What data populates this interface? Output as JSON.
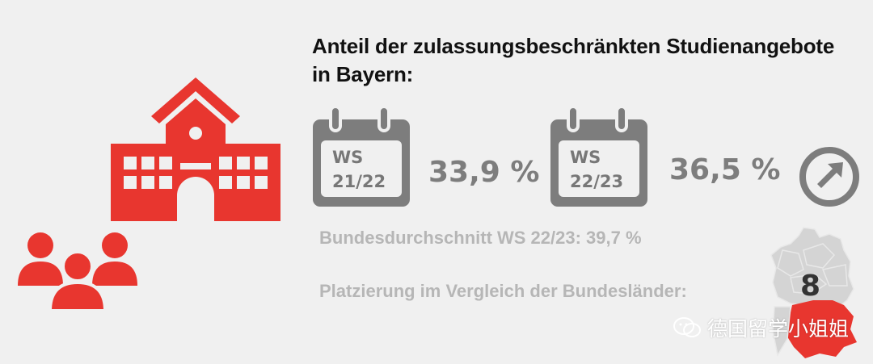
{
  "title_line1": "Anteil der zulassungsbeschränkten Studienangebote",
  "title_line2": "in Bayern:",
  "semester1": {
    "label": "WS",
    "year": "21/22",
    "value": "33,9 %"
  },
  "semester2": {
    "label": "WS",
    "year": "22/23",
    "value": "36,5 %"
  },
  "trend": "up",
  "average_line": "Bundesdurchschnitt WS 22/23: 39,7 %",
  "placement_label": "Platzierung im Vergleich der Bundesländer:",
  "placement_rank": "8",
  "watermark": "德国留学小姐姐",
  "colors": {
    "accent": "#e8362f",
    "gray": "#7d7d7d",
    "light_gray": "#b6b6b6",
    "background": "#f0f0f0"
  }
}
